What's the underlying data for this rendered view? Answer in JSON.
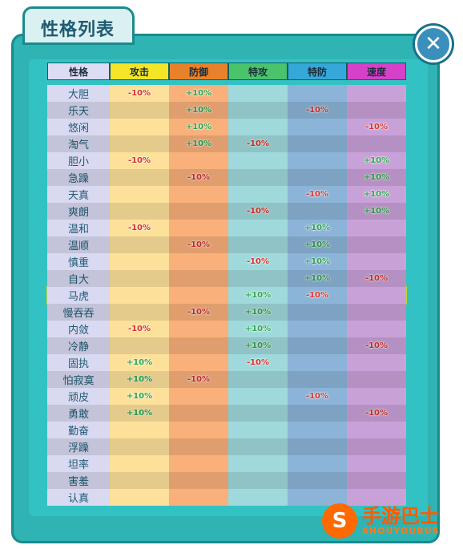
{
  "window": {
    "title": "性格列表",
    "close_label": "✕"
  },
  "colors": {
    "name": "#d9d9f1",
    "attack": "#fde19a",
    "defense": "#f9b07a",
    "sp_attack": "#9fd9db",
    "sp_defense": "#8bb4d8",
    "speed": "#c9a1d9",
    "header_name": "#dcdcf5",
    "header_attack": "#f5e528",
    "header_defense": "#e8822a",
    "header_sp_attack": "#4bc26c",
    "header_sp_defense": "#36a7d9",
    "header_speed": "#d541c8"
  },
  "table": {
    "headers": [
      "性格",
      "攻击",
      "防御",
      "特攻",
      "特防",
      "速度"
    ],
    "rows": [
      [
        "大胆",
        "-10%",
        "+10%",
        "",
        "",
        ""
      ],
      [
        "乐天",
        "",
        "+10%",
        "",
        "-10%",
        ""
      ],
      [
        "悠闲",
        "",
        "+10%",
        "",
        "",
        "-10%"
      ],
      [
        "淘气",
        "",
        "+10%",
        "-10%",
        "",
        ""
      ],
      [
        "胆小",
        "-10%",
        "",
        "",
        "",
        "+10%"
      ],
      [
        "急躁",
        "",
        "-10%",
        "",
        "",
        "+10%"
      ],
      [
        "天真",
        "",
        "",
        "",
        "-10%",
        "+10%"
      ],
      [
        "爽朗",
        "",
        "",
        "-10%",
        "",
        "+10%"
      ],
      [
        "温和",
        "-10%",
        "",
        "",
        "+10%",
        ""
      ],
      [
        "温顺",
        "",
        "-10%",
        "",
        "+10%",
        ""
      ],
      [
        "慎重",
        "",
        "",
        "-10%",
        "+10%",
        ""
      ],
      [
        "自大",
        "",
        "",
        "",
        "+10%",
        "-10%"
      ],
      [
        "马虎",
        "",
        "",
        "+10%",
        "-10%",
        ""
      ],
      [
        "慢吞吞",
        "",
        "-10%",
        "+10%",
        "",
        ""
      ],
      [
        "内敛",
        "-10%",
        "",
        "+10%",
        "",
        ""
      ],
      [
        "冷静",
        "",
        "",
        "+10%",
        "",
        "-10%"
      ],
      [
        "固执",
        "+10%",
        "",
        "-10%",
        "",
        ""
      ],
      [
        "怕寂寞",
        "+10%",
        "-10%",
        "",
        "",
        ""
      ],
      [
        "顽皮",
        "+10%",
        "",
        "",
        "-10%",
        ""
      ],
      [
        "勇敢",
        "+10%",
        "",
        "",
        "",
        "-10%"
      ],
      [
        "勤奋",
        "",
        "",
        "",
        "",
        ""
      ],
      [
        "浮躁",
        "",
        "",
        "",
        "",
        ""
      ],
      [
        "坦率",
        "",
        "",
        "",
        "",
        ""
      ],
      [
        "害羞",
        "",
        "",
        "",
        "",
        ""
      ],
      [
        "认真",
        "",
        "",
        "",
        "",
        ""
      ]
    ],
    "selected_row": "马虎"
  },
  "brand": {
    "cn": "手游巴士",
    "en": "SHOUYOUBUS",
    "logo_glyph": "S"
  }
}
